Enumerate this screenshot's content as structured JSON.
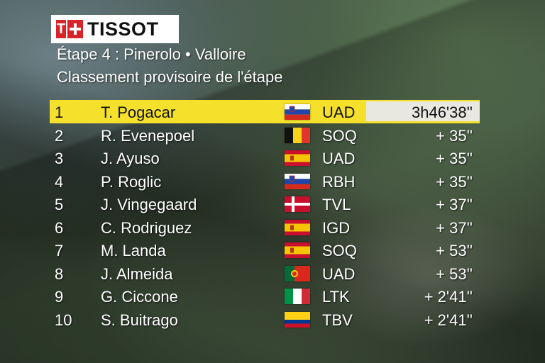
{
  "logo": {
    "brand": "TISSOT",
    "mark_icon": "tissot-swiss-cross-icon"
  },
  "stage": "Étape 4 : Pinerolo •  Valloire",
  "classification": "Classement provisoire de l'étape",
  "standings": [
    {
      "pos": "1",
      "name": "T. Pogacar",
      "flag": "slovenia",
      "team": "UAD",
      "time": "3h46'38''"
    },
    {
      "pos": "2",
      "name": "R. Evenepoel",
      "flag": "belgium",
      "team": "SOQ",
      "time": "+  35''"
    },
    {
      "pos": "3",
      "name": "J. Ayuso",
      "flag": "spain",
      "team": "UAD",
      "time": "+  35''"
    },
    {
      "pos": "4",
      "name": "P. Roglic",
      "flag": "slovenia",
      "team": "RBH",
      "time": "+  35''"
    },
    {
      "pos": "5",
      "name": "J. Vingegaard",
      "flag": "denmark",
      "team": "TVL",
      "time": "+  37''"
    },
    {
      "pos": "6",
      "name": "C. Rodriguez",
      "flag": "spain",
      "team": "IGD",
      "time": "+  37''"
    },
    {
      "pos": "7",
      "name": "M. Landa",
      "flag": "spain",
      "team": "SOQ",
      "time": "+  53''"
    },
    {
      "pos": "8",
      "name": "J. Almeida",
      "flag": "portugal",
      "team": "UAD",
      "time": "+  53''"
    },
    {
      "pos": "9",
      "name": "G. Ciccone",
      "flag": "italy",
      "team": "LTK",
      "time": "+ 2'41''"
    },
    {
      "pos": "10",
      "name": "S. Buitrago",
      "flag": "colombia",
      "team": "TBV",
      "time": "+ 2'41''"
    }
  ],
  "colors": {
    "leader_bar": "#f5e12b",
    "leader_time_box": "#e8e8e0",
    "logo_red": "#d8232a"
  }
}
